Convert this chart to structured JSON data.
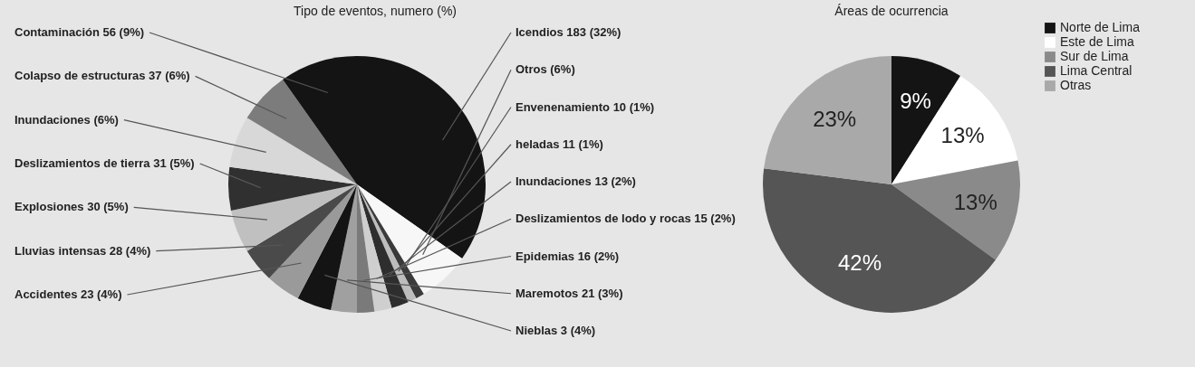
{
  "chart_data": [
    {
      "type": "pie",
      "title": "Tipo de eventos, numero (%)",
      "categories": [
        "Icendios",
        "Otros",
        "Envenenamiento",
        "heladas",
        "Inundaciones",
        "Deslizamientos de lodo y rocas",
        "Epidemias",
        "Maremotos",
        "Nieblas",
        "Accidentes",
        "Lluvias intensas",
        "Explosiones",
        "Deslizamientos de tierra",
        "Inundaciones",
        "Colapso de estructuras",
        "Contaminación"
      ],
      "values": [
        32,
        6,
        1,
        1,
        2,
        2,
        2,
        3,
        4,
        4,
        4,
        5,
        5,
        6,
        6,
        9
      ],
      "value_labels": [
        "183 (32%)",
        "(6%)",
        "10 (1%)",
        "11 (1%)",
        "13 (2%)",
        "15 (2%)",
        "16 (2%)",
        "21 (3%)",
        "3 (4%)",
        "23 (4%)",
        "28 (4%)",
        "30 (5%)",
        "31 (5%)",
        "(6%)",
        "37 (6%)",
        "56 (9%)"
      ],
      "colors": [
        "#141414",
        "#f7f7f7",
        "#3a3a3a",
        "#bdbdbd",
        "#2e2e2e",
        "#cfcfcf",
        "#7a7a7a",
        "#a0a0a0",
        "#141414",
        "#9a9a9a",
        "#4a4a4a",
        "#c0c0c0",
        "#303030",
        "#d8d8d8",
        "#7c7c7c",
        "#141414"
      ]
    },
    {
      "type": "pie",
      "title": "Áreas de ocurrencia",
      "categories": [
        "Norte de Lima",
        "Este de Lima",
        "Sur de Lima",
        "Lima Central",
        "Otras"
      ],
      "values": [
        9,
        13,
        13,
        42,
        23
      ],
      "value_labels": [
        "9%",
        "13%",
        "13%",
        "42%",
        "23%"
      ],
      "colors": [
        "#141414",
        "#ffffff",
        "#8a8a8a",
        "#555555",
        "#a9a9a9"
      ],
      "legend": "right"
    }
  ]
}
